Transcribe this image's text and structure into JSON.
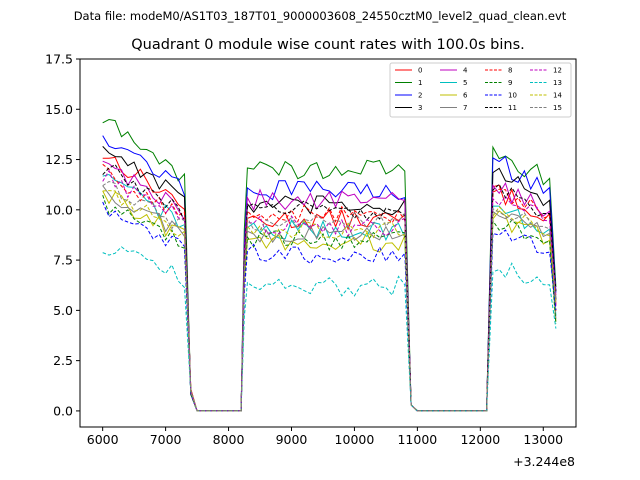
{
  "header": {
    "suptitle": "Data file: modeM0/AS1T03_187T01_9000003608_24550cztM0_level2_quad_clean.evt",
    "title": "Quadrant 0 module wise count rates with 100.0s bins."
  },
  "chart_data": {
    "type": "line",
    "title": "Quadrant 0 module wise count rates with 100.0s bins.",
    "xlabel": "",
    "ylabel": "",
    "x_offset_label": "+3.244e8",
    "x_offset": 324400000,
    "xlim": [
      5640,
      13520
    ],
    "ylim": [
      -0.8,
      17.5
    ],
    "xticks": [
      6000,
      7000,
      8000,
      9000,
      10000,
      11000,
      12000,
      13000
    ],
    "xtick_labels": [
      "6000",
      "7000",
      "8000",
      "9000",
      "10000",
      "11000",
      "12000",
      "13000"
    ],
    "yticks": [
      0,
      2.5,
      5,
      7.5,
      10,
      12.5,
      15,
      17.5
    ],
    "ytick_labels": [
      "0.0",
      "2.5",
      "5.0",
      "7.5",
      "10.0",
      "12.5",
      "15.0",
      "17.5"
    ],
    "grid": false,
    "legend_position": "top-right",
    "legend_columns": 4,
    "segments": [
      {
        "start": 6000,
        "end": 7300
      },
      {
        "start": 8300,
        "end": 10800
      },
      {
        "start": 12200,
        "end": 13100
      }
    ],
    "gaps": [
      [
        7500,
        8200
      ],
      [
        11000,
        12100
      ]
    ],
    "bin_seconds": 100,
    "series": [
      {
        "name": "0",
        "color": "#ff0000",
        "dash": "solid",
        "levels": [
          12.8,
          9.5,
          11.0
        ]
      },
      {
        "name": "1",
        "color": "#008000",
        "dash": "solid",
        "levels": [
          14.5,
          12.0,
          13.0
        ]
      },
      {
        "name": "2",
        "color": "#0000ff",
        "dash": "solid",
        "levels": [
          13.8,
          11.0,
          12.5
        ]
      },
      {
        "name": "3",
        "color": "#000000",
        "dash": "solid",
        "levels": [
          13.2,
          10.2,
          11.8
        ]
      },
      {
        "name": "4",
        "color": "#bf00bf",
        "dash": "solid",
        "levels": [
          12.4,
          10.5,
          11.2
        ]
      },
      {
        "name": "5",
        "color": "#00bfbf",
        "dash": "solid",
        "levels": [
          11.6,
          9.0,
          10.2
        ]
      },
      {
        "name": "6",
        "color": "#bfbf00",
        "dash": "solid",
        "levels": [
          10.8,
          8.4,
          9.6
        ]
      },
      {
        "name": "7",
        "color": "#808080",
        "dash": "solid",
        "levels": [
          11.0,
          8.8,
          10.0
        ]
      },
      {
        "name": "8",
        "color": "#ff0000",
        "dash": "dashed",
        "levels": [
          12.0,
          9.8,
          11.0
        ]
      },
      {
        "name": "9",
        "color": "#008000",
        "dash": "dashed",
        "levels": [
          10.4,
          8.5,
          9.6
        ]
      },
      {
        "name": "10",
        "color": "#0000ff",
        "dash": "dashed",
        "levels": [
          10.0,
          7.8,
          9.0
        ]
      },
      {
        "name": "11",
        "color": "#000000",
        "dash": "dashed",
        "levels": [
          12.2,
          10.0,
          11.2
        ]
      },
      {
        "name": "12",
        "color": "#bf00bf",
        "dash": "dashed",
        "levels": [
          11.8,
          9.2,
          10.8
        ]
      },
      {
        "name": "13",
        "color": "#00bfbf",
        "dash": "dashed",
        "levels": [
          8.2,
          6.2,
          7.2
        ]
      },
      {
        "name": "14",
        "color": "#bfbf00",
        "dash": "dashed",
        "levels": [
          11.2,
          9.0,
          10.0
        ]
      },
      {
        "name": "15",
        "color": "#808080",
        "dash": "dashed",
        "levels": [
          11.4,
          9.4,
          10.4
        ]
      }
    ]
  }
}
